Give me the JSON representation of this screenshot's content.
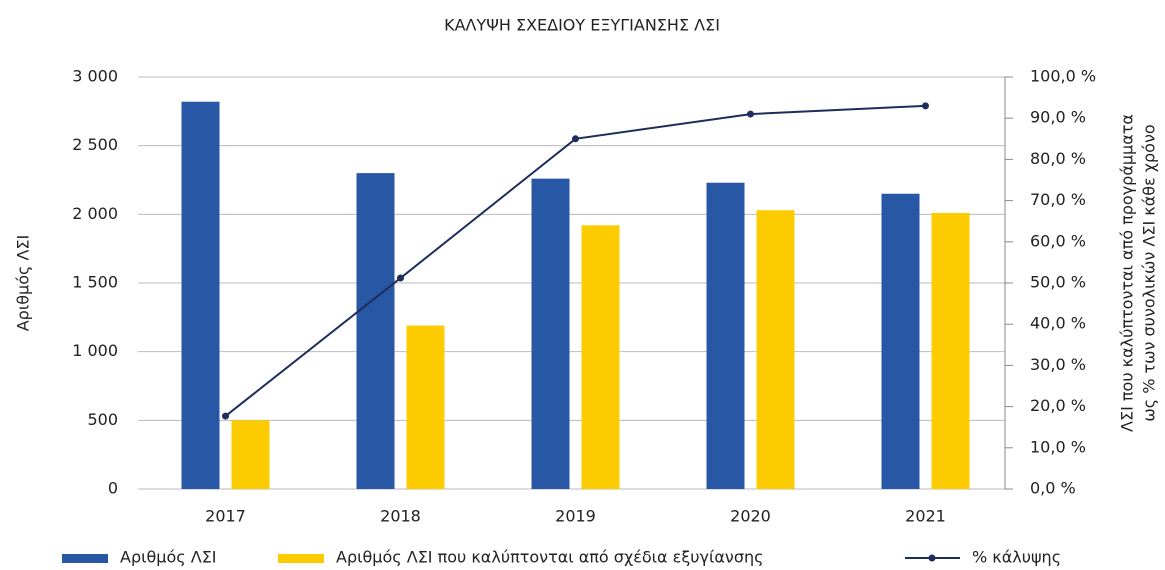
{
  "chart_data": {
    "type": "bar",
    "title": "ΚΑΛΥΨΗ ΣΧΕΔΙΟΥ ΕΞΥΓΙΑΝΣΗΣ ΛΣΙ",
    "y_label": "Αριθμός ΛΣΙ",
    "y2_label": [
      "ΛΣΙ που καλύπτονται από προγράμματα",
      "ως % των συνολικών ΛΣΙ κάθε χρόνο"
    ],
    "categories": [
      "2017",
      "2018",
      "2019",
      "2020",
      "2021"
    ],
    "series": [
      {
        "name": "Αριθμός ΛΣΙ",
        "color": "#2757a5",
        "type": "bar",
        "values": [
          2820,
          2300,
          2260,
          2230,
          2150
        ]
      },
      {
        "name": "Αριθμός ΛΣΙ που καλύπτονται από σχέδια εξυγίανσης",
        "color": "#fdcc00",
        "type": "bar",
        "values": [
          500,
          1190,
          1920,
          2030,
          2010
        ]
      },
      {
        "name": "% κάλυψης",
        "color": "#1f2d5c",
        "type": "line",
        "axis": "y2",
        "values": [
          17.7,
          51.2,
          85.0,
          91.0,
          93.0
        ]
      }
    ],
    "ylim": [
      0,
      3000
    ],
    "yticks": [
      0,
      500,
      {
        "value": 1000,
        "label": "1 000"
      },
      {
        "value": 1500,
        "label": "1 500"
      },
      {
        "value": 2000,
        "label": "2 000"
      },
      {
        "value": 2500,
        "label": "2 500"
      },
      {
        "value": 3000,
        "label": "3 000"
      }
    ],
    "y2lim": [
      0,
      100
    ],
    "y2ticks": [
      {
        "value": 0,
        "label": "0,0 %"
      },
      {
        "value": 10,
        "label": "10,0 %"
      },
      {
        "value": 20,
        "label": "20,0 %"
      },
      {
        "value": 30,
        "label": "30,0 %"
      },
      {
        "value": 40,
        "label": "40,0 %"
      },
      {
        "value": 50,
        "label": "50,0 %"
      },
      {
        "value": 60,
        "label": "60,0 %"
      },
      {
        "value": 70,
        "label": "70,0 %"
      },
      {
        "value": 80,
        "label": "80,0 %"
      },
      {
        "value": 90,
        "label": "90,0 %"
      },
      {
        "value": 100,
        "label": "100,0 %"
      }
    ],
    "grid": true
  }
}
